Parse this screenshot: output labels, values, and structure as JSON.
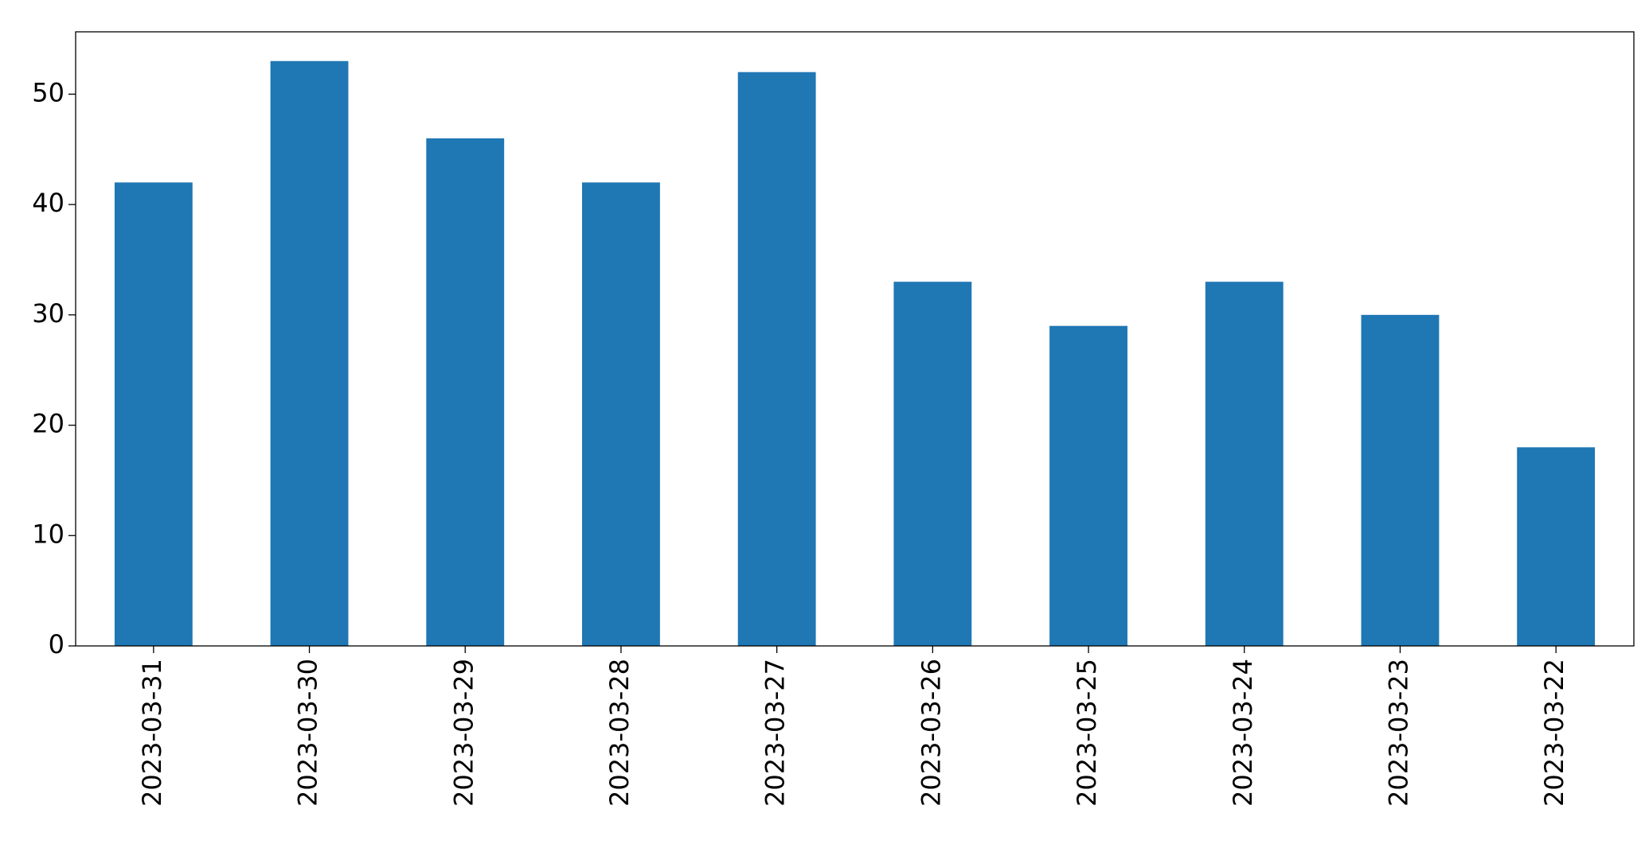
{
  "chart_data": {
    "type": "bar",
    "categories": [
      "2023-03-31",
      "2023-03-30",
      "2023-03-29",
      "2023-03-28",
      "2023-03-27",
      "2023-03-26",
      "2023-03-25",
      "2023-03-24",
      "2023-03-23",
      "2023-03-22"
    ],
    "values": [
      42,
      53,
      46,
      42,
      52,
      33,
      29,
      33,
      30,
      18
    ],
    "color": "#1f77b4",
    "ylim": [
      0,
      55.65
    ],
    "yticks": [
      0,
      10,
      20,
      30,
      40,
      50
    ],
    "grid": false
  }
}
